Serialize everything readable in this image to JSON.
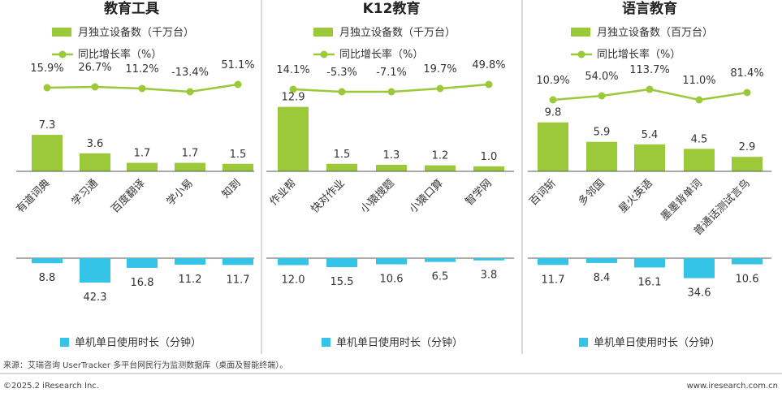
{
  "colors": {
    "bar": "#9BC93A",
    "line": "#9BC93A",
    "time_bar": "#35C3E8",
    "axis": "#555555",
    "divider": "#B0B0B0"
  },
  "time_legend": "单机单日使用时长（分钟）",
  "source": "来源：艾瑞咨询 UserTracker 多平台网民行为监测数据库（桌面及智能终端）。",
  "copyright": "©2025.2 iResearch Inc.",
  "website": "www.iresearch.com.cn",
  "chart_data": [
    {
      "type": "bar",
      "title": "教育工具",
      "categories": [
        "有道词典",
        "学习通",
        "百度翻译",
        "学小易",
        "知到"
      ],
      "series": [
        {
          "name": "月独立设备数（千万台）",
          "values": [
            7.3,
            3.6,
            1.7,
            1.7,
            1.5
          ],
          "labels": [
            "7.3",
            "3.6",
            "1.7",
            "1.7",
            "1.5"
          ]
        },
        {
          "name": "同比增长率（%）",
          "kind": "line",
          "values": [
            15.9,
            26.7,
            11.2,
            -13.4,
            51.1
          ],
          "labels": [
            "15.9%",
            "26.7%",
            "11.2%",
            "-13.4%",
            "51.1%"
          ]
        },
        {
          "name": "单机单日使用时长（分钟）",
          "values": [
            8.8,
            42.3,
            16.8,
            11.2,
            11.7
          ],
          "labels": [
            "8.8",
            "42.3",
            "16.8",
            "11.2",
            "11.7"
          ]
        }
      ],
      "bar_max": 13.0,
      "time_max": 42.3
    },
    {
      "type": "bar",
      "title": "K12教育",
      "categories": [
        "作业帮",
        "快对作业",
        "小猿搜题",
        "小猿口算",
        "智学网"
      ],
      "series": [
        {
          "name": "月独立设备数（千万台）",
          "values": [
            12.9,
            1.5,
            1.3,
            1.2,
            1.0
          ],
          "labels": [
            "12.9",
            "1.5",
            "1.3",
            "1.2",
            "1.0"
          ]
        },
        {
          "name": "同比增长率（%）",
          "kind": "line",
          "values": [
            14.1,
            -5.3,
            -7.1,
            19.7,
            49.8
          ],
          "labels": [
            "14.1%",
            "-5.3%",
            "-7.1%",
            "19.7%",
            "49.8%"
          ]
        },
        {
          "name": "单机单日使用时长（分钟）",
          "values": [
            12.0,
            15.5,
            10.6,
            6.5,
            3.8
          ],
          "labels": [
            "12.0",
            "15.5",
            "10.6",
            "6.5",
            "3.8"
          ]
        }
      ],
      "bar_max": 13.0,
      "time_max": 42.3
    },
    {
      "type": "bar",
      "title": "语言教育",
      "categories": [
        "百词斩",
        "多邻国",
        "星火英语",
        "墨墨背单词",
        "普通话测试言鸟"
      ],
      "series": [
        {
          "name": "月独立设备数（百万台）",
          "values": [
            9.8,
            5.9,
            5.4,
            4.5,
            2.9
          ],
          "labels": [
            "9.8",
            "5.9",
            "5.4",
            "4.5",
            "2.9"
          ]
        },
        {
          "name": "同比增长率（%）",
          "kind": "line",
          "values": [
            10.9,
            54.0,
            113.7,
            11.0,
            81.4
          ],
          "labels": [
            "10.9%",
            "54.0%",
            "113.7%",
            "11.0%",
            "81.4%"
          ]
        },
        {
          "name": "单机单日使用时长（分钟）",
          "values": [
            11.7,
            8.4,
            16.1,
            34.6,
            10.6
          ],
          "labels": [
            "11.7",
            "8.4",
            "16.1",
            "34.6",
            "10.6"
          ]
        }
      ],
      "bar_max": 13.0,
      "time_max": 42.3
    }
  ]
}
